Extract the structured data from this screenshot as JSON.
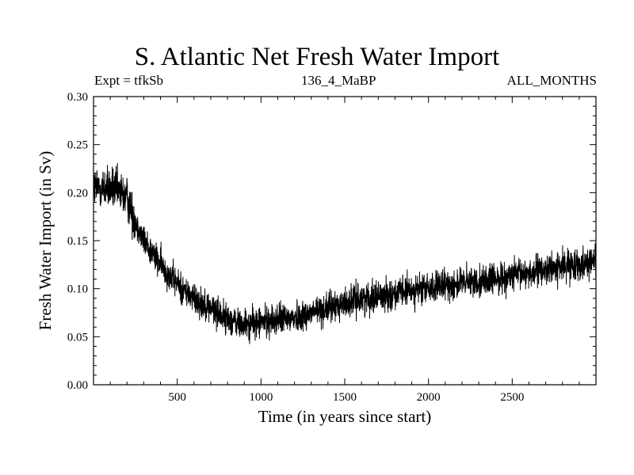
{
  "chart_data": {
    "type": "line",
    "title": "S. Atlantic Net Fresh Water Import",
    "subtitle_left": "Expt = tfkSb",
    "subtitle_center": "136_4_MaBP",
    "subtitle_right": "ALL_MONTHS",
    "xlabel": "Time (in years since start)",
    "ylabel": "Fresh Water Import (in Sv)",
    "xlim": [
      0,
      3000
    ],
    "ylim": [
      0.0,
      0.3
    ],
    "xticks": [
      500,
      1000,
      1500,
      2000,
      2500
    ],
    "xtick_labels": [
      "500",
      "1000",
      "1500",
      "2000",
      "2500"
    ],
    "yticks": [
      0.0,
      0.05,
      0.1,
      0.15,
      0.2,
      0.25,
      0.3
    ],
    "ytick_labels": [
      "0.00",
      "0.05",
      "0.10",
      "0.15",
      "0.20",
      "0.25",
      "0.30"
    ],
    "series": [
      {
        "name": "Net Fresh Water Import",
        "color": "#000000",
        "trend_x": [
          0,
          100,
          200,
          250,
          300,
          400,
          500,
          600,
          700,
          800,
          900,
          1000,
          1100,
          1200,
          1300,
          1400,
          1500,
          1600,
          1700,
          1800,
          1900,
          2000,
          2100,
          2200,
          2300,
          2400,
          2500,
          2600,
          2700,
          2800,
          2900,
          3000
        ],
        "trend_y": [
          0.205,
          0.205,
          0.195,
          0.17,
          0.15,
          0.125,
          0.105,
          0.09,
          0.08,
          0.068,
          0.062,
          0.065,
          0.068,
          0.07,
          0.075,
          0.08,
          0.085,
          0.09,
          0.092,
          0.095,
          0.098,
          0.1,
          0.103,
          0.106,
          0.108,
          0.11,
          0.113,
          0.117,
          0.12,
          0.123,
          0.126,
          0.13
        ],
        "noise_amplitude": 0.03
      }
    ]
  }
}
